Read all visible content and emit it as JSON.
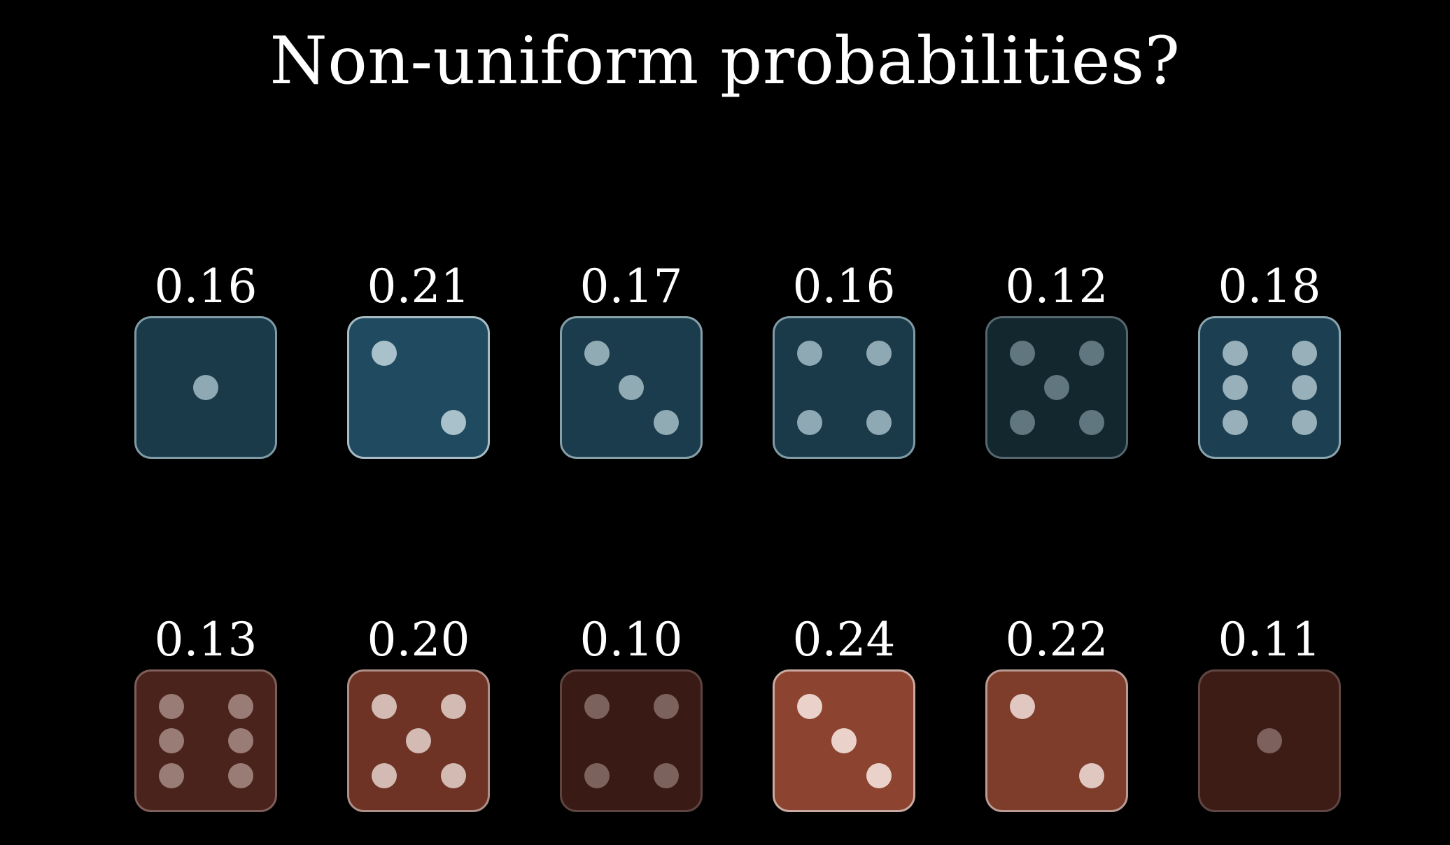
{
  "title": "Non-uniform probabilities?",
  "rows": [
    {
      "name": "blue-dice-row",
      "dice": [
        {
          "value": 1,
          "probability": "0.16",
          "fill": "#1a3a4a",
          "border": "#7f9ba6",
          "pip": "#8ea9b4"
        },
        {
          "value": 2,
          "probability": "0.21",
          "fill": "#1f4a5f",
          "border": "#a7bcc4",
          "pip": "#a9c1cb"
        },
        {
          "value": 3,
          "probability": "0.17",
          "fill": "#1b3c4c",
          "border": "#86a0aa",
          "pip": "#91abb5"
        },
        {
          "value": 4,
          "probability": "0.16",
          "fill": "#1a3a4a",
          "border": "#7f9ba6",
          "pip": "#8ea9b4"
        },
        {
          "value": 5,
          "probability": "0.12",
          "fill": "#13272f",
          "border": "#55676e",
          "pip": "#61777f"
        },
        {
          "value": 6,
          "probability": "0.18",
          "fill": "#1c4052",
          "border": "#8aa4ae",
          "pip": "#97b0ba"
        }
      ]
    },
    {
      "name": "red-dice-row",
      "dice": [
        {
          "value": 6,
          "probability": "0.13",
          "fill": "#4a231c",
          "border": "#7e5e58",
          "pip": "#9a7c76"
        },
        {
          "value": 5,
          "probability": "0.20",
          "fill": "#6e3325",
          "border": "#ad8f88",
          "pip": "#d3bbb4"
        },
        {
          "value": 4,
          "probability": "0.10",
          "fill": "#3a1a15",
          "border": "#5e4440",
          "pip": "#7c625d"
        },
        {
          "value": 3,
          "probability": "0.24",
          "fill": "#8c4330",
          "border": "#c9aaa2",
          "pip": "#ead2cb"
        },
        {
          "value": 2,
          "probability": "0.22",
          "fill": "#7e3c2b",
          "border": "#b99b93",
          "pip": "#e0c8c1"
        },
        {
          "value": 1,
          "probability": "0.11",
          "fill": "#3e1c16",
          "border": "#604642",
          "pip": "#7c615c"
        }
      ]
    }
  ]
}
